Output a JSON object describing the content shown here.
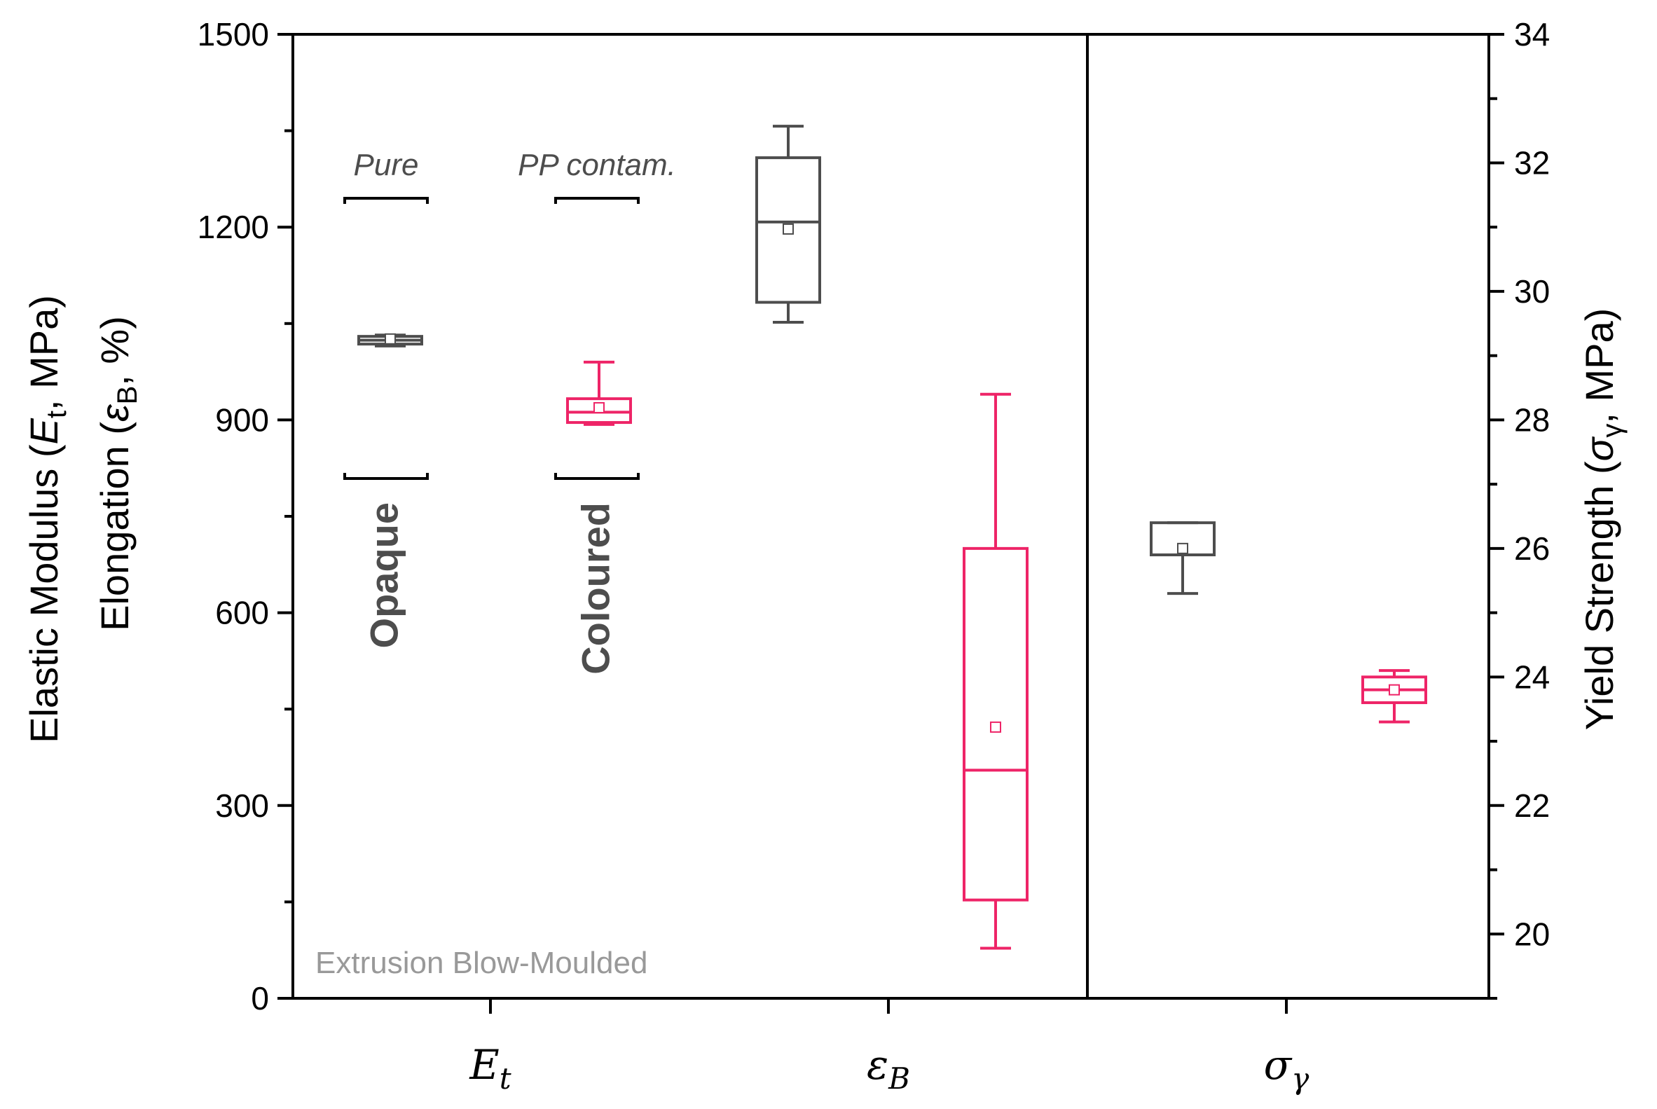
{
  "chart_data": {
    "type": "box",
    "categories": [
      "E_t",
      "ε_B",
      "σ_γ"
    ],
    "category_labels": [
      {
        "base": "E",
        "sub": "t"
      },
      {
        "base": "ε",
        "sub": "B"
      },
      {
        "base": "σ",
        "sub": "γ"
      }
    ],
    "left_axis": {
      "label_line1": {
        "pre": "Elastic Modulus (",
        "sym": "E",
        "sub": "t",
        "post": ", MPa)"
      },
      "label_line2": {
        "pre": "Elongation (",
        "sym": "ε",
        "sub": "B",
        "post": ", %)"
      },
      "range": [
        0,
        1500
      ],
      "ticks": [
        "0",
        "300",
        "600",
        "900",
        "1200",
        "1500"
      ]
    },
    "right_axis": {
      "label": {
        "pre": "Yield Strength (",
        "sym": "σ",
        "sub": "γ",
        "post": ", MPa)"
      },
      "range": [
        19,
        34
      ],
      "ticks": [
        "20",
        "22",
        "24",
        "26",
        "28",
        "30",
        "32",
        "34"
      ]
    },
    "annotations": {
      "pure": "Pure",
      "pp_contam": "PP contam.",
      "opaque": "Opaque",
      "coloured": "Coloured",
      "process": "Extrusion Blow-Moulded"
    },
    "series": [
      {
        "color": "#4d4d4d",
        "category": "E_t",
        "axis": "left",
        "whisker_low": 1015,
        "q1": 1018,
        "median": 1024,
        "q3": 1030,
        "whisker_high": 1032,
        "mean": 1026
      },
      {
        "color": "#ee2467",
        "category": "E_t",
        "axis": "left",
        "whisker_low": 893,
        "q1": 896,
        "median": 912,
        "q3": 933,
        "whisker_high": 990,
        "mean": 919
      },
      {
        "color": "#4d4d4d",
        "category": "ε_B",
        "axis": "left",
        "whisker_low": 1052,
        "q1": 1083,
        "median": 1208,
        "q3": 1308,
        "whisker_high": 1357,
        "mean": 1197
      },
      {
        "color": "#ee2467",
        "category": "ε_B",
        "axis": "left",
        "whisker_low": 78,
        "q1": 153,
        "median": 355,
        "q3": 700,
        "whisker_high": 940,
        "mean": 422
      },
      {
        "color": "#4d4d4d",
        "category": "σ_γ",
        "axis": "right",
        "whisker_low": 25.3,
        "q1": 25.9,
        "median": 25.9,
        "q3": 26.4,
        "whisker_high": 26.4,
        "mean": 26.0
      },
      {
        "color": "#ee2467",
        "category": "σ_γ",
        "axis": "right",
        "whisker_low": 23.3,
        "q1": 23.6,
        "median": 23.8,
        "q3": 24.0,
        "whisker_high": 24.1,
        "mean": 23.8
      }
    ]
  }
}
